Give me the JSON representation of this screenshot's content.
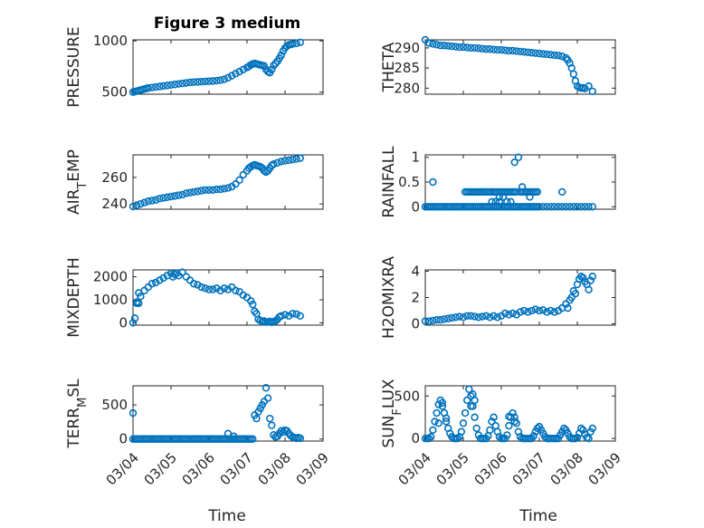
{
  "figure": {
    "title": "Figure 3 medium",
    "marker_color": "#0072BD",
    "x_tick_labels": [
      "03/04",
      "03/05",
      "03/06",
      "03/07",
      "03/08",
      "03/09"
    ],
    "x_label": "Time"
  },
  "chart_data": [
    {
      "type": "scatter",
      "ylabel": "PRESSURE",
      "ylabel_parts": [
        {
          "text": "PRESSURE",
          "sub": false
        }
      ],
      "ylim": [
        480,
        1010
      ],
      "yticks": [
        500,
        1000
      ],
      "xlim": [
        0,
        5
      ],
      "grid": true,
      "x": [
        0.0,
        0.05,
        0.1,
        0.15,
        0.2,
        0.25,
        0.3,
        0.35,
        0.4,
        0.5,
        0.6,
        0.7,
        0.8,
        0.9,
        1.0,
        1.1,
        1.2,
        1.3,
        1.4,
        1.5,
        1.6,
        1.7,
        1.8,
        1.9,
        2.0,
        2.1,
        2.2,
        2.3,
        2.4,
        2.5,
        2.6,
        2.7,
        2.8,
        2.9,
        3.0,
        3.05,
        3.1,
        3.15,
        3.2,
        3.25,
        3.3,
        3.35,
        3.4,
        3.45,
        3.5,
        3.55,
        3.6,
        3.65,
        3.7,
        3.75,
        3.8,
        3.85,
        3.9,
        3.95,
        4.0,
        4.05,
        4.1,
        4.15,
        4.2,
        4.3,
        4.4
      ],
      "y": [
        500,
        505,
        510,
        515,
        520,
        525,
        530,
        535,
        540,
        545,
        550,
        555,
        560,
        565,
        570,
        575,
        580,
        585,
        590,
        595,
        598,
        600,
        602,
        604,
        606,
        608,
        612,
        616,
        625,
        640,
        660,
        680,
        700,
        720,
        740,
        752,
        765,
        775,
        780,
        775,
        770,
        765,
        760,
        755,
        720,
        700,
        690,
        720,
        760,
        780,
        800,
        830,
        860,
        900,
        930,
        950,
        960,
        965,
        970,
        975,
        985
      ]
    },
    {
      "type": "scatter",
      "ylabel": "THETA",
      "ylabel_parts": [
        {
          "text": "THETA",
          "sub": false
        }
      ],
      "ylim": [
        278.5,
        292
      ],
      "yticks": [
        280,
        285,
        290
      ],
      "xlim": [
        0,
        5
      ],
      "grid": true,
      "x": [
        0.0,
        0.1,
        0.2,
        0.3,
        0.4,
        0.5,
        0.6,
        0.7,
        0.8,
        0.9,
        1.0,
        1.1,
        1.2,
        1.3,
        1.4,
        1.5,
        1.6,
        1.7,
        1.8,
        1.9,
        2.0,
        2.1,
        2.2,
        2.3,
        2.4,
        2.5,
        2.6,
        2.7,
        2.8,
        2.9,
        3.0,
        3.1,
        3.2,
        3.3,
        3.4,
        3.5,
        3.6,
        3.7,
        3.75,
        3.8,
        3.85,
        3.9,
        3.95,
        4.0,
        4.05,
        4.1,
        4.15,
        4.2,
        4.3,
        4.4
      ],
      "y": [
        292.0,
        291.2,
        291.0,
        290.8,
        290.6,
        290.6,
        290.5,
        290.4,
        290.3,
        290.2,
        290.2,
        290.1,
        290.0,
        290.0,
        289.9,
        289.8,
        289.7,
        289.7,
        289.6,
        289.5,
        289.5,
        289.4,
        289.3,
        289.3,
        289.2,
        289.1,
        289.0,
        288.9,
        288.8,
        288.7,
        288.6,
        288.5,
        288.4,
        288.3,
        288.2,
        288.1,
        287.9,
        287.5,
        287.0,
        286.2,
        285.0,
        283.5,
        281.8,
        280.5,
        280.2,
        280.0,
        280.1,
        279.9,
        280.5,
        279.2
      ]
    },
    {
      "type": "scatter",
      "ylabel": "AIR_TEMP",
      "ylabel_parts": [
        {
          "text": "AIR",
          "sub": false
        },
        {
          "text": "T",
          "sub": true
        },
        {
          "text": "EMP",
          "sub": false
        }
      ],
      "ylim": [
        236,
        277
      ],
      "yticks": [
        240,
        260
      ],
      "xlim": [
        0,
        5
      ],
      "grid": true,
      "x": [
        0.0,
        0.1,
        0.2,
        0.3,
        0.4,
        0.5,
        0.6,
        0.7,
        0.8,
        0.9,
        1.0,
        1.1,
        1.2,
        1.3,
        1.4,
        1.5,
        1.6,
        1.7,
        1.8,
        1.9,
        2.0,
        2.1,
        2.2,
        2.3,
        2.4,
        2.5,
        2.6,
        2.7,
        2.8,
        2.9,
        3.0,
        3.05,
        3.1,
        3.15,
        3.2,
        3.25,
        3.3,
        3.35,
        3.4,
        3.45,
        3.5,
        3.55,
        3.6,
        3.65,
        3.7,
        3.8,
        3.9,
        4.0,
        4.1,
        4.2,
        4.3,
        4.4
      ],
      "y": [
        238,
        239,
        240,
        241,
        242,
        242.5,
        243,
        244,
        244.5,
        245,
        245.5,
        246,
        246.5,
        247,
        248,
        248.5,
        249,
        249.5,
        250,
        250.5,
        250.5,
        250.5,
        251,
        251,
        251.5,
        252,
        253,
        255,
        258,
        262,
        265,
        267,
        268,
        269,
        269.5,
        269,
        268.5,
        268,
        267,
        265,
        264,
        265,
        267,
        269,
        270,
        271,
        272,
        272.5,
        273,
        273.5,
        274,
        274.5
      ]
    },
    {
      "type": "scatter",
      "ylabel": "RAINFALL",
      "ylabel_parts": [
        {
          "text": "RAINFALL",
          "sub": false
        }
      ],
      "ylim": [
        -0.05,
        1.05
      ],
      "yticks": [
        0,
        0.5,
        1
      ],
      "xlim": [
        0,
        5
      ],
      "grid": true,
      "x": [
        0.0,
        0.05,
        0.1,
        0.15,
        0.2,
        0.25,
        0.3,
        0.35,
        0.4,
        0.45,
        0.5,
        0.55,
        0.6,
        0.65,
        0.7,
        0.75,
        0.8,
        0.85,
        0.9,
        0.95,
        1.0,
        1.05,
        1.1,
        1.15,
        1.2,
        1.25,
        1.3,
        1.35,
        1.4,
        1.45,
        1.5,
        1.55,
        1.6,
        1.65,
        1.7,
        1.75,
        1.8,
        1.85,
        1.9,
        1.95,
        2.0,
        2.05,
        2.1,
        2.15,
        2.2,
        2.25,
        2.3,
        2.35,
        2.4,
        2.45,
        2.5,
        2.55,
        2.6,
        2.65,
        2.7,
        2.75,
        2.8,
        2.85,
        2.9,
        2.95,
        3.0,
        3.1,
        3.2,
        3.3,
        3.4,
        3.5,
        3.6,
        3.7,
        3.8,
        3.9,
        4.0,
        4.1,
        4.2,
        4.3,
        4.4,
        0.2,
        1.05,
        1.1,
        1.15,
        1.2,
        1.25,
        1.3,
        1.35,
        1.4,
        1.45,
        1.5,
        1.55,
        1.6,
        1.65,
        1.7,
        1.75,
        1.8,
        1.85,
        1.9,
        1.95,
        2.0,
        2.05,
        2.1,
        2.15,
        2.2,
        2.25,
        2.3,
        2.35,
        2.4,
        2.5,
        2.55,
        2.6,
        2.65,
        2.7,
        2.75,
        2.8,
        2.85,
        2.9,
        1.75,
        1.95,
        2.15,
        2.35,
        2.45,
        2.55,
        2.75,
        2.95,
        3.6,
        1.85,
        1.95,
        2.05,
        2.25
      ],
      "y": [
        0,
        0,
        0,
        0,
        0,
        0,
        0,
        0,
        0,
        0,
        0,
        0,
        0,
        0,
        0,
        0,
        0,
        0,
        0,
        0,
        0,
        0,
        0,
        0,
        0,
        0,
        0,
        0,
        0,
        0,
        0,
        0,
        0,
        0,
        0,
        0,
        0,
        0,
        0,
        0,
        0,
        0,
        0,
        0,
        0,
        0,
        0,
        0,
        0,
        0,
        0,
        0,
        0,
        0,
        0,
        0,
        0,
        0,
        0,
        0,
        0,
        0,
        0,
        0,
        0,
        0,
        0,
        0,
        0,
        0,
        0,
        0,
        0,
        0,
        0,
        0.5,
        0.3,
        0.3,
        0.3,
        0.3,
        0.3,
        0.3,
        0.3,
        0.3,
        0.3,
        0.3,
        0.3,
        0.3,
        0.3,
        0.3,
        0.3,
        0.3,
        0.3,
        0.3,
        0.3,
        0.3,
        0.3,
        0.3,
        0.3,
        0.3,
        0.3,
        0.3,
        0.3,
        0.3,
        0.3,
        0.3,
        0.3,
        0.3,
        0.3,
        0.3,
        0.3,
        0.3,
        0.3,
        0.1,
        0.2,
        0.1,
        0.9,
        1.0,
        0.4,
        0.2,
        0.3,
        0.3,
        0.1,
        0.1,
        0.2,
        0.1
      ]
    },
    {
      "type": "scatter",
      "ylabel": "MIXDEPTH",
      "ylabel_parts": [
        {
          "text": "MIXDEPTH",
          "sub": false
        }
      ],
      "ylim": [
        -100,
        2300
      ],
      "yticks": [
        0,
        1000,
        2000
      ],
      "xlim": [
        0,
        5
      ],
      "grid": true,
      "x": [
        0.0,
        0.05,
        0.1,
        0.15,
        0.2,
        0.3,
        0.4,
        0.5,
        0.6,
        0.7,
        0.8,
        0.9,
        1.0,
        1.05,
        1.1,
        1.15,
        1.2,
        1.3,
        1.4,
        1.5,
        1.6,
        1.7,
        1.8,
        1.9,
        2.0,
        2.1,
        2.2,
        2.3,
        2.4,
        2.5,
        2.6,
        2.7,
        2.8,
        2.9,
        3.0,
        3.1,
        3.15,
        3.2,
        3.25,
        3.3,
        3.35,
        3.4,
        3.45,
        3.5,
        3.55,
        3.6,
        3.65,
        3.7,
        3.75,
        3.8,
        3.85,
        3.9,
        4.0,
        4.1,
        4.2,
        4.3,
        4.4,
        0.1,
        0.15
      ],
      "y": [
        0,
        200,
        850,
        1300,
        1150,
        1400,
        1550,
        1700,
        1750,
        1850,
        1950,
        2050,
        2150,
        2000,
        2100,
        2150,
        2050,
        2200,
        2000,
        1850,
        1700,
        1650,
        1550,
        1500,
        1450,
        1450,
        1500,
        1400,
        1500,
        1450,
        1550,
        1400,
        1350,
        1200,
        1100,
        950,
        800,
        500,
        400,
        150,
        100,
        50,
        80,
        30,
        40,
        60,
        20,
        50,
        80,
        150,
        250,
        300,
        350,
        300,
        400,
        380,
        300,
        900,
        850
      ]
    },
    {
      "type": "scatter",
      "ylabel": "H2OMIXRA",
      "ylabel_parts": [
        {
          "text": "H2OMIXRA",
          "sub": false
        }
      ],
      "ylim": [
        -0.1,
        4.1
      ],
      "yticks": [
        0,
        2,
        4
      ],
      "xlim": [
        0,
        5
      ],
      "grid": true,
      "x": [
        0.0,
        0.1,
        0.2,
        0.3,
        0.4,
        0.5,
        0.6,
        0.7,
        0.8,
        0.9,
        1.0,
        1.1,
        1.2,
        1.3,
        1.4,
        1.5,
        1.6,
        1.7,
        1.8,
        1.9,
        2.0,
        2.1,
        2.2,
        2.3,
        2.4,
        2.5,
        2.6,
        2.7,
        2.8,
        2.9,
        3.0,
        3.1,
        3.2,
        3.3,
        3.4,
        3.5,
        3.6,
        3.7,
        3.75,
        3.8,
        3.85,
        3.9,
        3.95,
        4.0,
        4.05,
        4.1,
        4.15,
        4.2,
        4.25,
        4.3,
        4.35,
        4.4
      ],
      "y": [
        0.2,
        0.2,
        0.25,
        0.3,
        0.3,
        0.35,
        0.4,
        0.45,
        0.5,
        0.55,
        0.5,
        0.6,
        0.6,
        0.55,
        0.5,
        0.55,
        0.6,
        0.5,
        0.6,
        0.5,
        0.6,
        0.8,
        0.7,
        0.8,
        0.7,
        0.9,
        1.0,
        0.9,
        1.0,
        1.1,
        1.0,
        1.05,
        0.9,
        1.0,
        0.9,
        1.0,
        1.2,
        1.5,
        1.2,
        1.8,
        2.0,
        2.5,
        2.3,
        3.0,
        3.4,
        3.6,
        3.5,
        3.2,
        3.0,
        2.6,
        3.3,
        3.6
      ]
    },
    {
      "type": "scatter",
      "ylabel": "TERR_MSL",
      "ylabel_parts": [
        {
          "text": "TERR",
          "sub": false
        },
        {
          "text": "M",
          "sub": true
        },
        {
          "text": "SL",
          "sub": false
        }
      ],
      "ylim": [
        -30,
        780
      ],
      "yticks": [
        0,
        500
      ],
      "xlim": [
        0,
        5
      ],
      "grid": true,
      "x": [
        0.0,
        0.05,
        0.1,
        0.15,
        0.2,
        0.25,
        0.3,
        0.35,
        0.4,
        0.45,
        0.5,
        0.55,
        0.6,
        0.65,
        0.7,
        0.75,
        0.8,
        0.85,
        0.9,
        0.95,
        1.0,
        1.05,
        1.1,
        1.15,
        1.2,
        1.25,
        1.3,
        1.35,
        1.4,
        1.45,
        1.5,
        1.55,
        1.6,
        1.65,
        1.7,
        1.75,
        1.8,
        1.85,
        1.9,
        1.95,
        2.0,
        2.05,
        2.1,
        2.15,
        2.2,
        2.25,
        2.3,
        2.35,
        2.4,
        2.45,
        2.5,
        2.55,
        2.6,
        2.65,
        2.7,
        2.75,
        2.8,
        2.85,
        2.9,
        2.95,
        3.0,
        3.05,
        3.1,
        3.15,
        3.2,
        3.25,
        3.3,
        3.35,
        3.4,
        3.45,
        3.5,
        3.55,
        3.6,
        3.65,
        3.7,
        3.75,
        3.8,
        3.85,
        3.9,
        3.95,
        4.0,
        4.05,
        4.1,
        4.15,
        4.2,
        4.25,
        4.3,
        4.35,
        4.4,
        0.0,
        2.5,
        2.65
      ],
      "y": [
        0,
        0,
        0,
        0,
        0,
        0,
        0,
        0,
        0,
        0,
        0,
        0,
        0,
        0,
        0,
        0,
        0,
        0,
        0,
        0,
        0,
        0,
        0,
        0,
        0,
        0,
        0,
        0,
        0,
        0,
        0,
        0,
        0,
        0,
        0,
        0,
        0,
        0,
        0,
        0,
        0,
        0,
        0,
        0,
        0,
        0,
        0,
        0,
        0,
        0,
        0,
        0,
        0,
        0,
        0,
        0,
        0,
        0,
        0,
        0,
        0,
        0,
        0,
        0,
        350,
        300,
        400,
        450,
        500,
        550,
        750,
        600,
        300,
        200,
        60,
        30,
        40,
        80,
        120,
        100,
        130,
        120,
        80,
        50,
        30,
        20,
        10,
        20,
        10,
        380,
        80,
        40
      ]
    },
    {
      "type": "scatter",
      "ylabel": "SUN_FLUX",
      "ylabel_parts": [
        {
          "text": "SUN",
          "sub": false
        },
        {
          "text": "F",
          "sub": true
        },
        {
          "text": "LUX",
          "sub": false
        }
      ],
      "ylim": [
        -30,
        620
      ],
      "yticks": [
        0,
        500
      ],
      "xlim": [
        0,
        5
      ],
      "grid": true,
      "x": [
        0.0,
        0.05,
        0.1,
        0.15,
        0.2,
        0.25,
        0.3,
        0.35,
        0.4,
        0.45,
        0.5,
        0.55,
        0.6,
        0.65,
        0.7,
        0.75,
        0.8,
        0.85,
        0.9,
        0.95,
        1.0,
        1.05,
        1.1,
        1.15,
        1.2,
        1.25,
        1.3,
        1.35,
        1.4,
        1.45,
        1.5,
        1.55,
        1.6,
        1.65,
        1.7,
        1.75,
        1.8,
        1.85,
        1.9,
        1.95,
        2.0,
        2.05,
        2.1,
        2.15,
        2.2,
        2.25,
        2.3,
        2.35,
        2.4,
        2.45,
        2.5,
        2.55,
        2.6,
        2.65,
        2.7,
        2.75,
        2.8,
        2.85,
        2.9,
        2.95,
        3.0,
        3.05,
        3.1,
        3.15,
        3.2,
        3.25,
        3.3,
        3.35,
        3.4,
        3.45,
        3.5,
        3.55,
        3.6,
        3.65,
        3.7,
        3.75,
        3.8,
        3.85,
        3.9,
        3.95,
        4.0,
        4.05,
        4.1,
        4.15,
        4.2,
        4.25,
        4.3,
        4.35,
        4.4,
        1.25,
        1.3,
        1.2,
        0.35,
        0.45,
        0.55,
        2.2,
        2.35
      ],
      "y": [
        0,
        0,
        0,
        20,
        100,
        200,
        300,
        400,
        450,
        380,
        300,
        200,
        120,
        60,
        20,
        0,
        0,
        0,
        20,
        80,
        180,
        300,
        450,
        580,
        500,
        380,
        250,
        120,
        40,
        0,
        0,
        0,
        0,
        30,
        100,
        200,
        250,
        150,
        80,
        20,
        0,
        0,
        0,
        40,
        150,
        250,
        300,
        250,
        180,
        80,
        20,
        0,
        0,
        0,
        0,
        0,
        0,
        30,
        80,
        120,
        140,
        100,
        60,
        20,
        0,
        0,
        0,
        0,
        0,
        0,
        0,
        40,
        80,
        120,
        100,
        60,
        20,
        0,
        0,
        0,
        10,
        60,
        120,
        100,
        50,
        10,
        0,
        80,
        120,
        520,
        450,
        380,
        180,
        420,
        240,
        260,
        200
      ]
    }
  ]
}
